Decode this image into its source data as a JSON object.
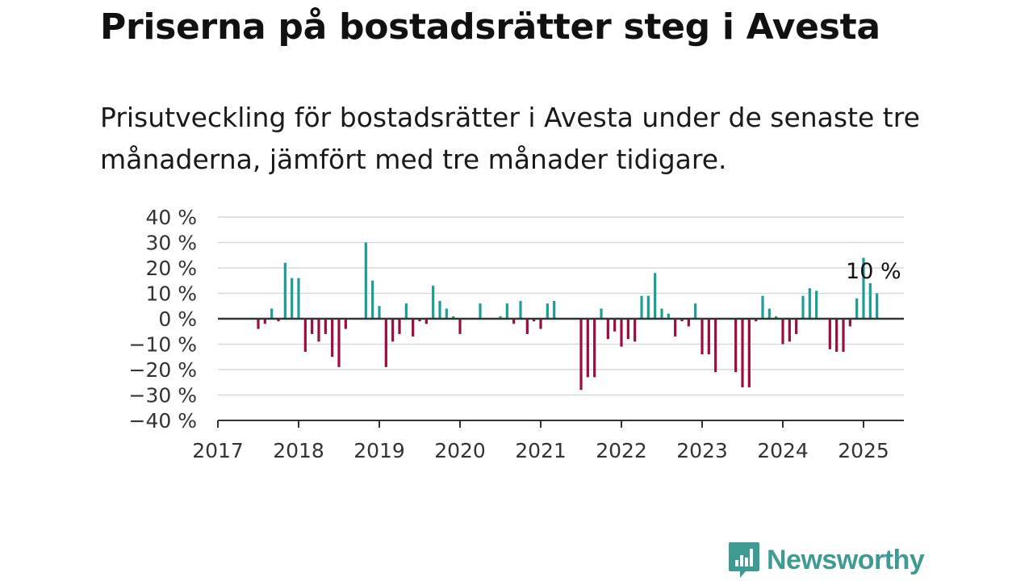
{
  "title": "Priserna på bostadsrätter steg i Avesta",
  "subtitle": "Prisutveckling för bostadsrätter i Avesta under de senaste tre månaderna, jämfört med tre månader tidigare.",
  "brand": {
    "name": "Newsworthy",
    "icon": "newsworthy-logo-icon",
    "color": "#3d9b93"
  },
  "chart_data": {
    "type": "bar",
    "start_month": "2017-01",
    "ylim": [
      -40,
      40
    ],
    "y_ticks": [
      40,
      30,
      20,
      10,
      0,
      -10,
      -20,
      -30,
      -40
    ],
    "y_tick_labels": [
      "40 %",
      "30 %",
      "20 %",
      "10 %",
      "0 %",
      "−10 %",
      "−20 %",
      "−30 %",
      "−40 %"
    ],
    "x_tick_labels": [
      "2017",
      "2018",
      "2019",
      "2020",
      "2021",
      "2022",
      "2023",
      "2024",
      "2025"
    ],
    "colors": {
      "positive": "#1a9e96",
      "negative": "#9b0c45",
      "grid": "#d9d9d9",
      "axis": "#333333"
    },
    "annotation": {
      "text": "10 %",
      "month": "2025-02"
    },
    "values": [
      null,
      null,
      null,
      null,
      null,
      null,
      -4,
      -2,
      4,
      -1,
      22,
      16,
      16,
      -13,
      -6,
      -9,
      -6,
      -15,
      -19,
      -4,
      null,
      null,
      30,
      15,
      5,
      -19,
      -9,
      -6,
      6,
      -7,
      -1,
      -2,
      13,
      7,
      4,
      1,
      -6,
      null,
      null,
      6,
      null,
      null,
      1,
      6,
      -2,
      7,
      -6,
      -1,
      -4,
      6,
      7,
      null,
      null,
      null,
      -28,
      -23,
      -23,
      4,
      -8,
      -5,
      -11,
      -8,
      -9,
      9,
      9,
      18,
      4,
      2,
      -7,
      -1,
      -3,
      6,
      -14,
      -14,
      -21,
      null,
      null,
      -21,
      -27,
      -27,
      -1,
      9,
      4,
      1,
      -10,
      -9,
      -6,
      9,
      12,
      11,
      null,
      -12,
      -13,
      -13,
      -3,
      8,
      24,
      14,
      10
    ]
  }
}
